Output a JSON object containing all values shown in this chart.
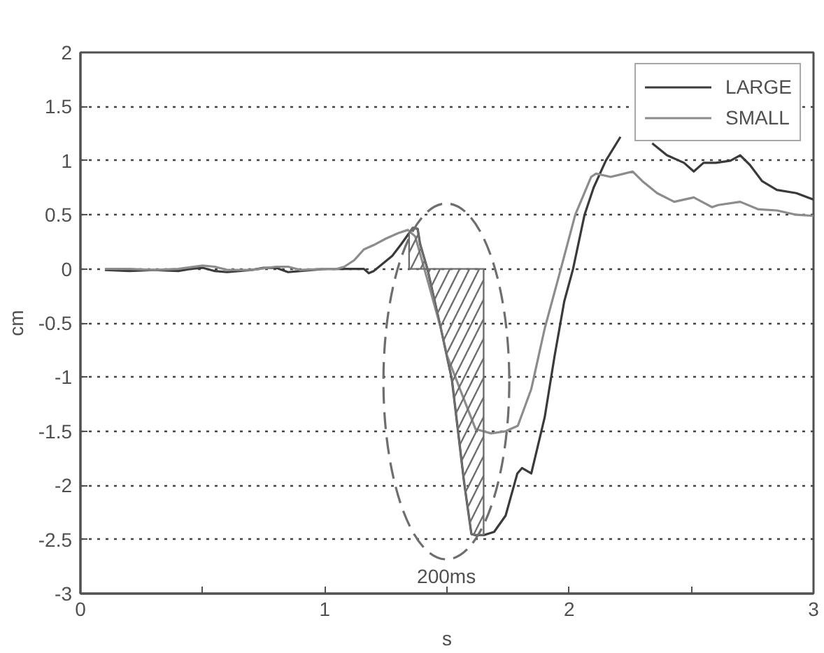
{
  "chart_data": {
    "type": "line",
    "xlabel": "s",
    "ylabel": "cm",
    "xlim": [
      0,
      3
    ],
    "xticks": [
      0,
      {
        "value": 0.5,
        "label": null
      },
      1,
      {
        "value": 1.5,
        "label": null
      },
      2,
      {
        "value": 2.5,
        "label": null
      },
      3
    ],
    "ylim": [
      -3,
      2
    ],
    "yticks": [
      -3,
      -2.5,
      -2,
      -1.5,
      -1,
      -0.5,
      0,
      0.5,
      1,
      1.5,
      2
    ],
    "grid": "y",
    "legend": "top right",
    "annotations": [
      "200ms"
    ],
    "series": [
      {
        "name": "LARGE",
        "color": "#3a3a3a",
        "x": [
          0.1,
          0.2,
          0.3,
          0.4,
          0.45,
          0.5,
          0.55,
          0.6,
          0.65,
          0.7,
          0.75,
          0.8,
          0.85,
          0.9,
          1.0,
          1.1,
          1.16,
          1.18,
          1.2,
          1.276,
          1.31,
          1.345,
          1.36,
          1.38,
          1.39,
          1.42,
          1.475,
          1.52,
          1.57,
          1.6,
          1.617,
          1.65,
          1.693,
          1.74,
          1.788,
          1.807,
          1.845,
          1.9,
          1.94,
          1.98,
          2.016,
          2.063,
          2.1,
          2.15,
          2.21,
          2.28,
          2.34,
          2.4,
          2.47,
          2.51,
          2.55,
          2.6,
          2.66,
          2.7,
          2.74,
          2.79,
          2.85,
          2.93,
          3.0
        ],
        "values": [
          -0.01,
          -0.02,
          -0.01,
          -0.02,
          0,
          0.01,
          -0.02,
          -0.03,
          -0.02,
          -0.01,
          0.01,
          0.01,
          -0.03,
          -0.02,
          0,
          0,
          0,
          -0.04,
          -0.02,
          0.12,
          0.22,
          0.33,
          0.38,
          0.37,
          0.23,
          0,
          -0.55,
          -1.02,
          -1.97,
          -2.45,
          -2.46,
          -2.46,
          -2.43,
          -2.28,
          -1.89,
          -1.84,
          -1.89,
          -1.37,
          -0.81,
          -0.3,
          0,
          0.5,
          0.75,
          1.0,
          1.22,
          null,
          1.16,
          1.05,
          0.98,
          0.9,
          0.98,
          0.98,
          1.0,
          1.05,
          0.96,
          0.81,
          0.73,
          0.7,
          0.64
        ]
      },
      {
        "name": "SMALL",
        "color": "#8c8c8c",
        "x": [
          0.1,
          0.2,
          0.3,
          0.4,
          0.5,
          0.55,
          0.6,
          0.7,
          0.8,
          0.85,
          0.9,
          1.0,
          1.05,
          1.08,
          1.12,
          1.16,
          1.2,
          1.25,
          1.3,
          1.34,
          1.37,
          1.42,
          1.475,
          1.5,
          1.56,
          1.617,
          1.68,
          1.74,
          1.79,
          1.845,
          1.9,
          1.96,
          2.025,
          2.09,
          2.11,
          2.17,
          2.225,
          2.26,
          2.3,
          2.36,
          2.43,
          2.51,
          2.585,
          2.61,
          2.7,
          2.775,
          2.85,
          2.93,
          3.0
        ],
        "values": [
          0,
          0,
          -0.01,
          0,
          0.03,
          0.02,
          -0.01,
          -0.01,
          0.02,
          0.02,
          -0.01,
          0,
          0,
          0.02,
          0.08,
          0.18,
          0.22,
          0.28,
          0.33,
          0.36,
          0.3,
          -0.1,
          -0.55,
          -0.8,
          -1.15,
          -1.48,
          -1.52,
          -1.5,
          -1.45,
          -1.11,
          -0.55,
          -0.05,
          0.5,
          0.85,
          0.88,
          0.85,
          0.88,
          0.9,
          0.81,
          0.7,
          0.62,
          0.66,
          0.57,
          0.59,
          0.62,
          0.55,
          0.54,
          0.5,
          0.49
        ]
      },
      {
        "type": "area",
        "color": "#6e6e6e",
        "x": [
          1.345,
          1.36,
          1.38,
          1.39,
          1.42,
          1.475,
          1.52,
          1.57,
          1.6,
          1.617,
          1.65
        ],
        "values": [
          0.33,
          0.38,
          0.37,
          0.23,
          0,
          -0.55,
          -1.02,
          -1.97,
          -2.45,
          -2.46,
          -2.46
        ]
      }
    ]
  }
}
